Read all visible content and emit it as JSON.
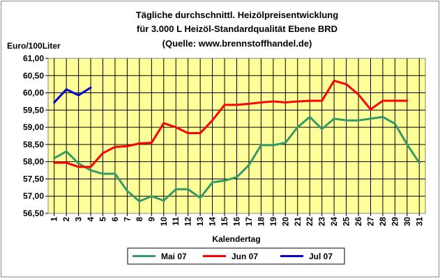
{
  "chart_data": {
    "type": "line",
    "title_lines": [
      "Tägliche durchschnittl. Heizölpreisentwicklung",
      "für 3.000 L Heizöl-Standardqualität Ebene BRD",
      "(Quelle: www.brennstoffhandel.de)"
    ],
    "ylabel": "Euro/100Liter",
    "xlabel": "Kalendertag",
    "ylim": [
      56.5,
      61.0
    ],
    "ytick_step": 0.5,
    "x": [
      1,
      2,
      3,
      4,
      5,
      6,
      7,
      8,
      9,
      10,
      11,
      12,
      13,
      14,
      15,
      16,
      17,
      18,
      19,
      20,
      21,
      22,
      23,
      24,
      25,
      26,
      27,
      28,
      29,
      30,
      31
    ],
    "grid": true,
    "plot_background": "#ffff99",
    "legend_position": "bottom",
    "series": [
      {
        "name": "Mai 07",
        "color": "#339966",
        "values": [
          58.1,
          58.3,
          57.95,
          57.75,
          57.65,
          57.65,
          57.15,
          56.85,
          57.0,
          56.87,
          57.2,
          57.2,
          56.95,
          57.4,
          57.45,
          57.55,
          57.9,
          58.48,
          58.48,
          58.55,
          59.0,
          59.3,
          58.95,
          59.25,
          59.2,
          59.2,
          59.25,
          59.3,
          59.1,
          58.5,
          57.97
        ]
      },
      {
        "name": "Jun 07",
        "color": "#ff0000",
        "values": [
          57.97,
          57.97,
          57.85,
          57.85,
          58.25,
          58.43,
          58.45,
          58.53,
          58.55,
          59.12,
          59.0,
          58.83,
          58.83,
          59.2,
          59.65,
          59.65,
          59.68,
          59.72,
          59.75,
          59.72,
          59.75,
          59.77,
          59.77,
          60.35,
          60.25,
          59.95,
          59.52,
          59.77,
          59.77,
          59.77,
          null
        ]
      },
      {
        "name": "Jul 07",
        "color": "#0000cc",
        "values": [
          59.72,
          60.1,
          59.93,
          60.15,
          null,
          null,
          null,
          null,
          null,
          null,
          null,
          null,
          null,
          null,
          null,
          null,
          null,
          null,
          null,
          null,
          null,
          null,
          null,
          null,
          null,
          null,
          null,
          null,
          null,
          null,
          null
        ]
      }
    ]
  }
}
